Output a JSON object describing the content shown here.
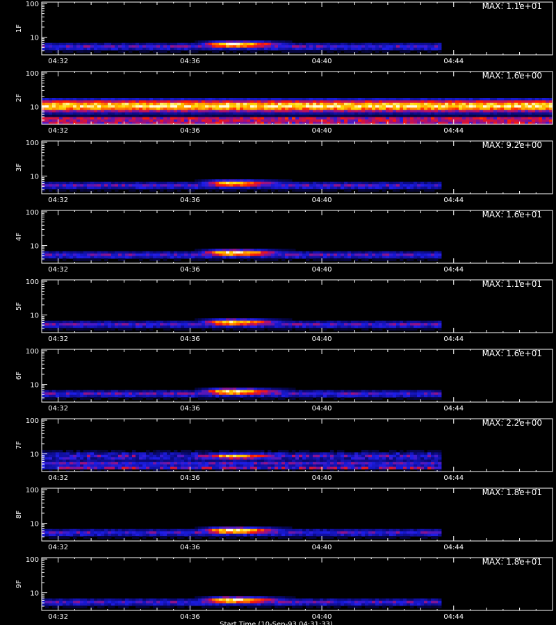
{
  "chart_data": {
    "type": "heatmap",
    "x_tick_labels": [
      "04:32",
      "04:36",
      "04:40",
      "04:44"
    ],
    "x_tick_minutes": [
      32,
      36,
      40,
      44
    ],
    "x_range_minutes": [
      31.5,
      47.0
    ],
    "y_scale": "log",
    "y_range": [
      3,
      110
    ],
    "y_tick_labels": [
      "10",
      "100"
    ],
    "y_tick_values": [
      10,
      100
    ],
    "colors": {
      "background": "#000000",
      "axis": "#ffffff",
      "colormap": [
        "#000000",
        "#0a0a80",
        "#1e1ee8",
        "#b01070",
        "#ff1a00",
        "#ff8c00",
        "#ffd700",
        "#ffffe0"
      ]
    },
    "panels": [
      {
        "id": "1F",
        "label": "1F",
        "max_text": "MAX: 1.1e+01",
        "pattern": "burst",
        "peak_ratio": 1.0
      },
      {
        "id": "2F",
        "label": "2F",
        "max_text": "MAX: 1.6e+00",
        "pattern": "band",
        "peak_ratio": 1.0
      },
      {
        "id": "3F",
        "label": "3F",
        "max_text": "MAX: 9.2e+00",
        "pattern": "burst",
        "peak_ratio": 0.85
      },
      {
        "id": "4F",
        "label": "4F",
        "max_text": "MAX: 1.6e+01",
        "pattern": "burst",
        "peak_ratio": 1.0
      },
      {
        "id": "5F",
        "label": "5F",
        "max_text": "MAX: 1.1e+01",
        "pattern": "burst",
        "peak_ratio": 0.9
      },
      {
        "id": "6F",
        "label": "6F",
        "max_text": "MAX: 1.6e+01",
        "pattern": "burst",
        "peak_ratio": 1.0
      },
      {
        "id": "7F",
        "label": "7F",
        "max_text": "MAX: 2.2e+00",
        "pattern": "noisy",
        "peak_ratio": 0.8
      },
      {
        "id": "8F",
        "label": "8F",
        "max_text": "MAX: 1.8e+01",
        "pattern": "burst",
        "peak_ratio": 1.0
      },
      {
        "id": "9F",
        "label": "9F",
        "max_text": "MAX: 1.8e+01",
        "pattern": "burst",
        "peak_ratio": 1.0
      }
    ],
    "footer_text": "Start Time (10-Sep-93 04:31:33)"
  }
}
